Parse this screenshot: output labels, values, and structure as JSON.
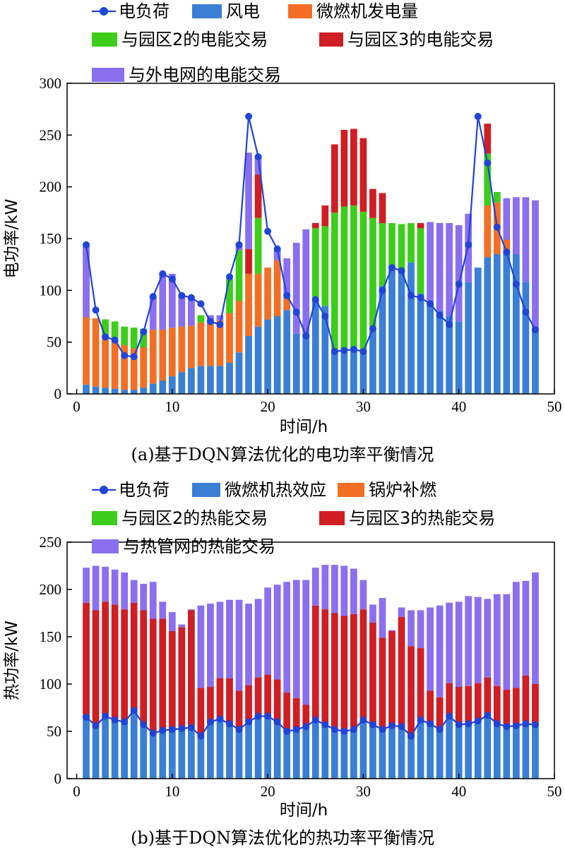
{
  "chart_data": [
    {
      "type": "bar",
      "stacked": true,
      "caption": "(a)基于DQN算法优化的电功率平衡情况",
      "xlabel": "时间/h",
      "ylabel": "电功率/kW",
      "xlim": [
        -1,
        50
      ],
      "ylim": [
        0,
        300
      ],
      "xticks": [
        0,
        10,
        20,
        30,
        40,
        50
      ],
      "yticks": [
        0,
        50,
        100,
        150,
        200,
        250,
        300
      ],
      "legend_position": "top",
      "x": [
        1,
        2,
        3,
        4,
        5,
        6,
        7,
        8,
        9,
        10,
        11,
        12,
        13,
        14,
        15,
        16,
        17,
        18,
        19,
        20,
        21,
        22,
        23,
        24,
        25,
        26,
        27,
        28,
        29,
        30,
        31,
        32,
        33,
        34,
        35,
        36,
        37,
        38,
        39,
        40,
        41,
        42,
        43,
        44,
        45,
        46,
        47,
        48
      ],
      "series": [
        {
          "name": "风电",
          "color": "#3a7fd5",
          "values": [
            9,
            7,
            6,
            5,
            4,
            4,
            6,
            10,
            13,
            17,
            21,
            25,
            27,
            27,
            27,
            30,
            40,
            56,
            65,
            72,
            75,
            81,
            58,
            57,
            90,
            85,
            40,
            41,
            42,
            41,
            60,
            104,
            120,
            119,
            127,
            97,
            88,
            80,
            75,
            70,
            108,
            122,
            132,
            135,
            137,
            135,
            108,
            60
          ]
        },
        {
          "name": "微燃机发电量",
          "color": "#f26f25",
          "values": [
            65,
            66,
            50,
            48,
            43,
            40,
            39,
            52,
            49,
            47,
            44,
            41,
            42,
            43,
            44,
            48,
            50,
            60,
            51,
            50,
            54,
            11,
            0,
            0,
            0,
            0,
            0,
            0,
            0,
            0,
            0,
            0,
            0,
            0,
            0,
            0,
            0,
            0,
            0,
            0,
            0,
            0,
            50,
            50,
            12,
            0,
            0,
            0
          ]
        },
        {
          "name": "与园区2的电能交易",
          "color": "#3dcd1b",
          "values": [
            0,
            0,
            16,
            17,
            18,
            20,
            18,
            0,
            0,
            0,
            0,
            0,
            7,
            0,
            0,
            33,
            49,
            0,
            54,
            0,
            0,
            0,
            0,
            0,
            70,
            77,
            135,
            140,
            140,
            135,
            110,
            61,
            45,
            45,
            38,
            63,
            0,
            0,
            0,
            0,
            0,
            0,
            50,
            10,
            0,
            0,
            0,
            0
          ]
        },
        {
          "name": "与园区3的电能交易",
          "color": "#cf1e24",
          "values": [
            0,
            0,
            0,
            0,
            0,
            0,
            0,
            0,
            0,
            0,
            0,
            0,
            0,
            0,
            0,
            0,
            0,
            24,
            42,
            0,
            0,
            0,
            0,
            0,
            5,
            20,
            66,
            74,
            74,
            71,
            28,
            29,
            0,
            0,
            0,
            5,
            0,
            0,
            0,
            0,
            0,
            0,
            29,
            0,
            0,
            0,
            0,
            0
          ]
        },
        {
          "name": "与外电网的电能交易",
          "color": "#8a6fef",
          "values": [
            70,
            0,
            0,
            0,
            0,
            0,
            0,
            32,
            55,
            52,
            31,
            28,
            0,
            6,
            5,
            0,
            4,
            93,
            17,
            0,
            10,
            39,
            88,
            102,
            0,
            0,
            0,
            0,
            0,
            0,
            0,
            0,
            0,
            0,
            0,
            0,
            78,
            85,
            90,
            93,
            66,
            0,
            0,
            0,
            40,
            55,
            82,
            127
          ]
        },
        {
          "name": "电负荷",
          "color": "#1f44d8",
          "type": "line",
          "values": [
            144,
            81,
            55,
            52,
            37,
            36,
            60,
            94,
            116,
            111,
            95,
            93,
            87,
            70,
            67,
            113,
            144,
            268,
            229,
            157,
            140,
            95,
            79,
            56,
            91,
            75,
            41,
            42,
            43,
            41,
            63,
            100,
            122,
            119,
            95,
            93,
            87,
            76,
            67,
            106,
            144,
            268,
            223,
            161,
            137,
            106,
            79,
            62
          ]
        }
      ]
    },
    {
      "type": "bar",
      "stacked": true,
      "caption": "(b)基于DQN算法优化的热功率平衡情况",
      "xlabel": "时间/h",
      "ylabel": "热功率/kW",
      "xlim": [
        -1,
        50
      ],
      "ylim": [
        0,
        250
      ],
      "xticks": [
        0,
        10,
        20,
        30,
        40,
        50
      ],
      "yticks": [
        0,
        50,
        100,
        150,
        200,
        250
      ],
      "legend_position": "top",
      "x": [
        1,
        2,
        3,
        4,
        5,
        6,
        7,
        8,
        9,
        10,
        11,
        12,
        13,
        14,
        15,
        16,
        17,
        18,
        19,
        20,
        21,
        22,
        23,
        24,
        25,
        26,
        27,
        28,
        29,
        30,
        31,
        32,
        33,
        34,
        35,
        36,
        37,
        38,
        39,
        40,
        41,
        42,
        43,
        44,
        45,
        46,
        47,
        48
      ],
      "series": [
        {
          "name": "微燃机热效应",
          "color": "#3a7fd5",
          "values": [
            65,
            56,
            66,
            62,
            60,
            72,
            57,
            48,
            51,
            52,
            53,
            54,
            45,
            60,
            63,
            58,
            52,
            60,
            66,
            66,
            60,
            50,
            52,
            55,
            62,
            57,
            52,
            50,
            52,
            62,
            57,
            52,
            56,
            55,
            45,
            62,
            58,
            52,
            66,
            57,
            58,
            61,
            67,
            58,
            55,
            56,
            58,
            57
          ]
        },
        {
          "name": "锅炉补燃",
          "color": "#f26f25",
          "values": [
            0,
            0,
            0,
            0,
            0,
            0,
            0,
            0,
            0,
            0,
            0,
            0,
            0,
            0,
            0,
            0,
            0,
            0,
            0,
            0,
            0,
            0,
            0,
            0,
            0,
            0,
            0,
            0,
            0,
            0,
            0,
            0,
            0,
            0,
            0,
            0,
            0,
            0,
            0,
            0,
            0,
            0,
            0,
            0,
            0,
            0,
            0,
            0
          ]
        },
        {
          "name": "与园区2的热能交易",
          "color": "#3dcd1b",
          "values": [
            0,
            0,
            0,
            0,
            0,
            0,
            0,
            0,
            0,
            0,
            0,
            0,
            0,
            0,
            0,
            0,
            0,
            0,
            0,
            0,
            0,
            0,
            0,
            0,
            0,
            0,
            0,
            0,
            0,
            0,
            0,
            0,
            0,
            0,
            0,
            0,
            0,
            0,
            0,
            0,
            0,
            0,
            0,
            0,
            0,
            0,
            0,
            0
          ]
        },
        {
          "name": "与园区3的热能交易",
          "color": "#cf1e24",
          "values": [
            121,
            122,
            121,
            122,
            119,
            114,
            121,
            121,
            118,
            104,
            107,
            124,
            51,
            37,
            43,
            48,
            41,
            39,
            41,
            44,
            45,
            41,
            33,
            23,
            121,
            122,
            123,
            122,
            122,
            117,
            108,
            97,
            100,
            116,
            95,
            76,
            35,
            34,
            35,
            40,
            40,
            40,
            40,
            40,
            39,
            40,
            51,
            43
          ]
        },
        {
          "name": "与热管网的热能交易",
          "color": "#8a6fef",
          "values": [
            37,
            47,
            37,
            37,
            39,
            24,
            28,
            39,
            18,
            20,
            3,
            1,
            87,
            88,
            81,
            83,
            96,
            86,
            83,
            92,
            100,
            117,
            125,
            132,
            40,
            47,
            51,
            53,
            48,
            31,
            19,
            42,
            1,
            10,
            38,
            40,
            88,
            97,
            85,
            90,
            95,
            91,
            83,
            97,
            101,
            112,
            100,
            118
          ]
        },
        {
          "name": "电负荷",
          "color": "#1f44d8",
          "type": "line",
          "values": [
            65,
            56,
            66,
            62,
            60,
            72,
            57,
            48,
            51,
            52,
            53,
            54,
            45,
            60,
            63,
            58,
            52,
            60,
            66,
            66,
            60,
            50,
            52,
            55,
            62,
            57,
            52,
            50,
            52,
            62,
            57,
            52,
            56,
            55,
            45,
            62,
            58,
            52,
            66,
            57,
            58,
            61,
            67,
            58,
            55,
            56,
            58,
            57
          ]
        }
      ]
    }
  ]
}
